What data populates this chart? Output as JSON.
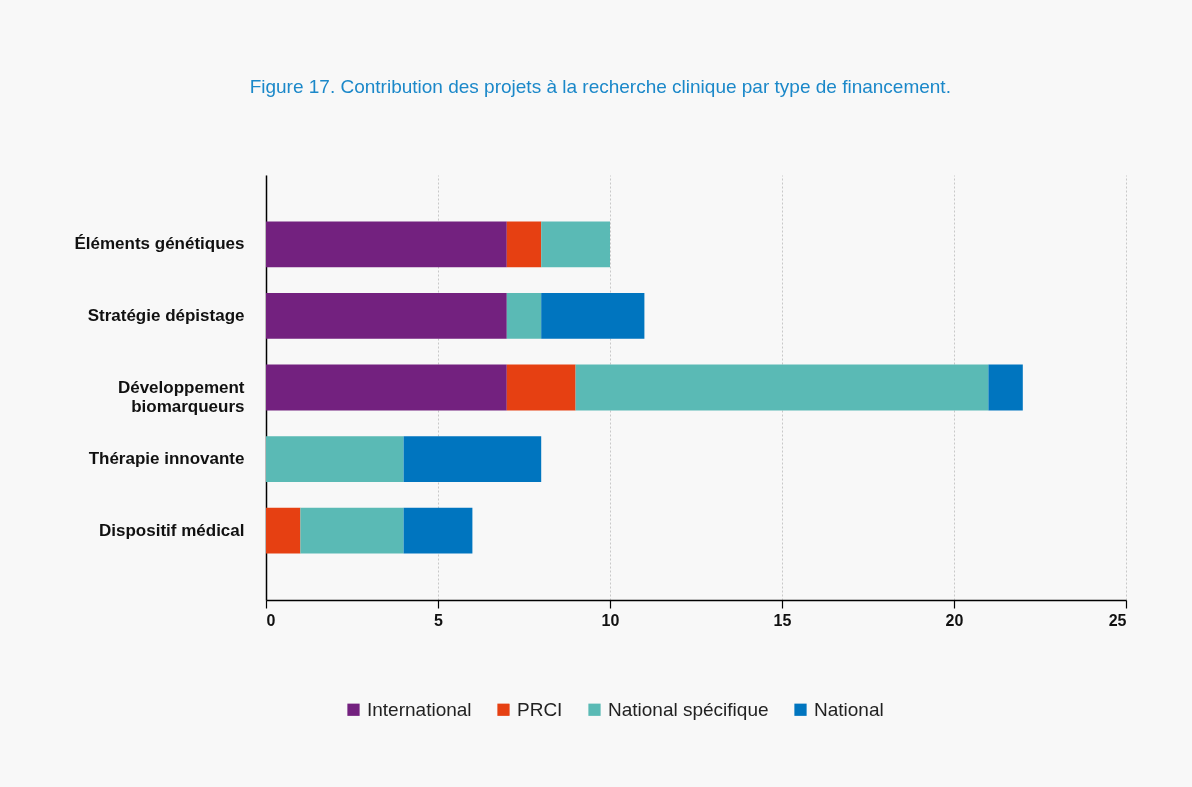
{
  "chart_data": {
    "type": "bar",
    "orientation": "horizontal",
    "stacked": true,
    "title": "Figure 17. Contribution des projets à la recherche clinique par type de financement.",
    "categories": [
      "Éléments génétiques",
      "Stratégie dépistage",
      "Développement biomarqueurs",
      "Thérapie innovante",
      "Dispositif médical"
    ],
    "series": [
      {
        "name": "International",
        "color": "#73217f",
        "values": [
          7,
          7,
          7,
          0,
          0
        ]
      },
      {
        "name": "PRCI",
        "color": "#e64012",
        "values": [
          1,
          0,
          2,
          0,
          1
        ]
      },
      {
        "name": "National spécifique",
        "color": "#5abab5",
        "values": [
          2,
          1,
          12,
          4,
          3
        ]
      },
      {
        "name": "National",
        "color": "#0075bf",
        "values": [
          0,
          3,
          1,
          4,
          2
        ]
      }
    ],
    "xlim": [
      0,
      25
    ],
    "xticks": [
      0,
      5,
      10,
      15,
      20,
      25
    ],
    "grid": "x",
    "legend": "bottom"
  }
}
